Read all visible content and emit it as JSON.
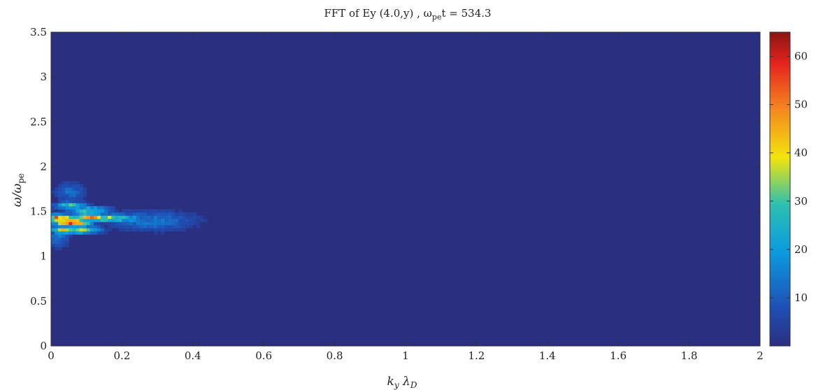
{
  "chart_data": {
    "type": "heatmap",
    "title": "FFT of Ey (4.0,y) , ω",
    "title_sub": "pe",
    "title_tail": "t = 534.3",
    "xlabel_main": "k",
    "xlabel_sub": "y",
    "xlabel_main2": " λ",
    "xlabel_sub2": "D",
    "ylabel_main": "ω/ω",
    "ylabel_sub": "pe",
    "xlim": [
      0,
      2
    ],
    "ylim": [
      0,
      3.5
    ],
    "x_ticks": [
      "0",
      "0.2",
      "0.4",
      "0.6",
      "0.8",
      "1",
      "1.2",
      "1.4",
      "1.6",
      "1.8",
      "2"
    ],
    "y_ticks": [
      "0",
      "0.5",
      "1",
      "1.5",
      "2",
      "2.5",
      "3",
      "3.5"
    ],
    "colorbar": {
      "min": 0,
      "max": 65,
      "ticks": [
        "10",
        "20",
        "30",
        "40",
        "50",
        "60"
      ],
      "colormap": "jet"
    },
    "background_color": "#2b2f7f",
    "hotspots": [
      {
        "kx": 0.055,
        "w": 1.36,
        "value": 65
      },
      {
        "kx": 0.02,
        "w": 1.41,
        "value": 55
      },
      {
        "kx": 0.1,
        "w": 1.42,
        "value": 45
      },
      {
        "kx": 0.16,
        "w": 1.41,
        "value": 35
      },
      {
        "kx": 0.03,
        "w": 1.28,
        "value": 40
      },
      {
        "kx": 0.08,
        "w": 1.28,
        "value": 35
      },
      {
        "kx": 0.05,
        "w": 1.55,
        "value": 30
      },
      {
        "kx": 0.1,
        "w": 1.5,
        "value": 28
      },
      {
        "kx": 0.2,
        "w": 1.4,
        "value": 20
      },
      {
        "kx": 0.28,
        "w": 1.38,
        "value": 14
      },
      {
        "kx": 0.05,
        "w": 1.7,
        "value": 12
      },
      {
        "kx": 0.015,
        "w": 1.2,
        "value": 15
      }
    ]
  }
}
